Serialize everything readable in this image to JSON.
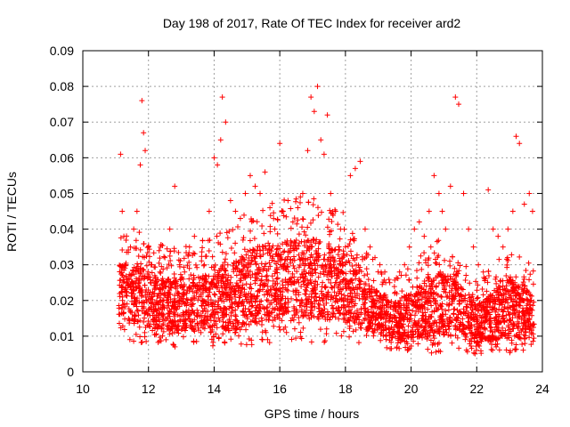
{
  "chart_data": {
    "type": "scatter",
    "title": "Day 198 of 2017, Rate Of TEC Index for receiver ard2",
    "xlabel": "GPS time / hours",
    "ylabel": "ROTI / TECUs",
    "xlim": [
      10,
      24
    ],
    "ylim": [
      0,
      0.09
    ],
    "xticks": [
      "10",
      "12",
      "14",
      "16",
      "18",
      "20",
      "22",
      "24"
    ],
    "yticks": [
      "0",
      "0.01",
      "0.02",
      "0.03",
      "0.04",
      "0.05",
      "0.06",
      "0.07",
      "0.08",
      "0.09"
    ],
    "grid": true,
    "marker": "+",
    "color": "#ff0000",
    "series": [
      {
        "x": [
          11.15,
          11.2,
          11.25,
          11.3,
          11.35,
          11.45,
          11.55,
          11.65,
          11.75,
          11.8,
          11.85,
          11.9,
          12.0,
          12.1,
          12.2,
          12.35,
          12.5,
          12.65,
          12.8,
          12.95,
          13.1,
          13.25,
          13.4,
          13.55,
          13.7,
          13.85,
          14.0,
          14.1,
          14.2,
          14.25,
          14.35,
          14.5,
          14.65,
          14.8,
          14.95,
          15.1,
          15.25,
          15.4,
          15.55,
          15.7,
          15.85,
          16.0,
          16.1,
          16.25,
          16.4,
          16.55,
          16.7,
          16.85,
          16.95,
          17.05,
          17.15,
          17.25,
          17.35,
          17.45,
          17.55,
          17.7,
          17.85,
          18.0,
          18.15,
          18.3,
          18.45,
          18.6,
          18.75,
          18.9,
          19.05,
          19.2,
          19.35,
          19.5,
          19.65,
          19.8,
          19.95,
          20.1,
          20.25,
          20.4,
          20.55,
          20.7,
          20.85,
          20.95,
          21.05,
          21.2,
          21.35,
          21.45,
          21.6,
          21.75,
          21.9,
          22.05,
          22.2,
          22.35,
          22.5,
          22.65,
          22.8,
          22.95,
          23.1,
          23.2,
          23.3,
          23.45,
          23.6,
          23.7
        ],
        "y": [
          0.061,
          0.045,
          0.038,
          0.03,
          0.026,
          0.035,
          0.04,
          0.045,
          0.058,
          0.076,
          0.067,
          0.062,
          0.035,
          0.03,
          0.025,
          0.028,
          0.032,
          0.04,
          0.052,
          0.03,
          0.028,
          0.035,
          0.038,
          0.025,
          0.03,
          0.045,
          0.06,
          0.058,
          0.065,
          0.077,
          0.07,
          0.048,
          0.045,
          0.043,
          0.05,
          0.055,
          0.052,
          0.05,
          0.056,
          0.046,
          0.04,
          0.064,
          0.045,
          0.048,
          0.042,
          0.046,
          0.05,
          0.062,
          0.077,
          0.073,
          0.08,
          0.065,
          0.061,
          0.072,
          0.05,
          0.045,
          0.04,
          0.035,
          0.055,
          0.057,
          0.059,
          0.04,
          0.035,
          0.032,
          0.03,
          0.028,
          0.025,
          0.022,
          0.028,
          0.03,
          0.035,
          0.04,
          0.042,
          0.038,
          0.045,
          0.055,
          0.05,
          0.045,
          0.04,
          0.052,
          0.077,
          0.075,
          0.05,
          0.04,
          0.035,
          0.03,
          0.028,
          0.051,
          0.04,
          0.038,
          0.035,
          0.04,
          0.045,
          0.066,
          0.064,
          0.047,
          0.05,
          0.045
        ]
      }
    ],
    "density": [
      [
        11.1,
        0.012,
        0.04
      ],
      [
        11.5,
        0.008,
        0.04
      ],
      [
        12.0,
        0.008,
        0.038
      ],
      [
        12.5,
        0.008,
        0.035
      ],
      [
        13.0,
        0.006,
        0.035
      ],
      [
        13.5,
        0.007,
        0.036
      ],
      [
        14.0,
        0.007,
        0.04
      ],
      [
        14.5,
        0.006,
        0.04
      ],
      [
        15.0,
        0.007,
        0.045
      ],
      [
        15.5,
        0.008,
        0.048
      ],
      [
        16.0,
        0.008,
        0.048
      ],
      [
        16.5,
        0.009,
        0.05
      ],
      [
        17.0,
        0.008,
        0.05
      ],
      [
        17.5,
        0.008,
        0.048
      ],
      [
        18.0,
        0.008,
        0.045
      ],
      [
        18.5,
        0.008,
        0.035
      ],
      [
        19.0,
        0.007,
        0.03
      ],
      [
        19.5,
        0.006,
        0.026
      ],
      [
        20.0,
        0.006,
        0.03
      ],
      [
        20.5,
        0.005,
        0.035
      ],
      [
        21.0,
        0.005,
        0.038
      ],
      [
        21.5,
        0.005,
        0.032
      ],
      [
        22.0,
        0.005,
        0.025
      ],
      [
        22.5,
        0.005,
        0.03
      ],
      [
        23.0,
        0.004,
        0.035
      ],
      [
        23.5,
        0.005,
        0.032
      ],
      [
        23.75,
        0.006,
        0.028
      ]
    ]
  }
}
